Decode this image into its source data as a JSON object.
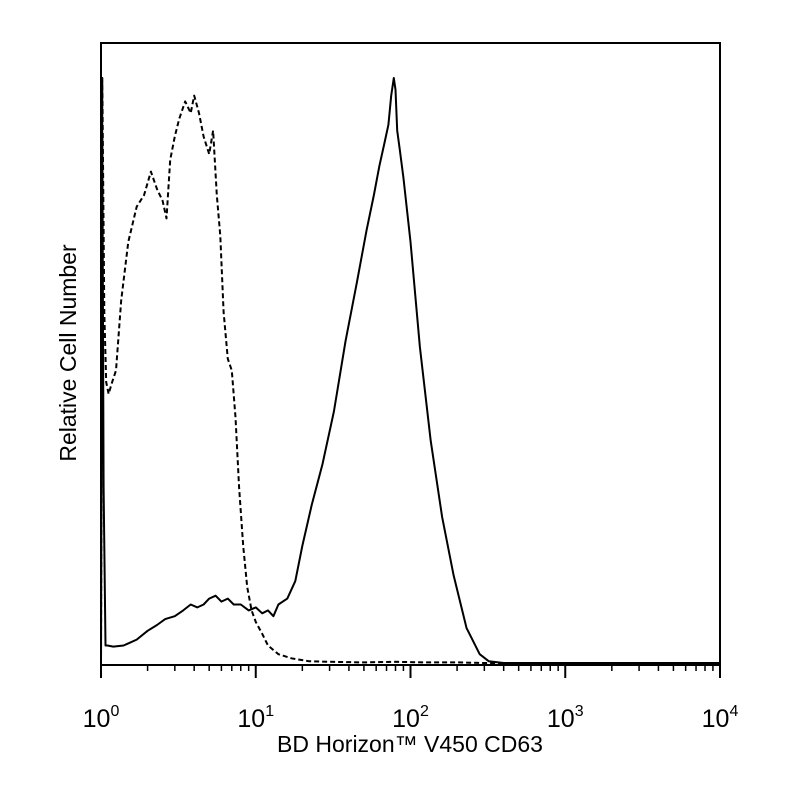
{
  "chart_data": {
    "type": "line",
    "title": "",
    "xlabel": "BD Horizon™ V450 CD63",
    "ylabel": "Relative Cell Number",
    "x_scale": "log",
    "xlim": [
      1,
      10000
    ],
    "ylim": [
      0,
      1
    ],
    "grid": false,
    "legend": "none",
    "x_ticks": [
      {
        "base": "10",
        "exp": "0"
      },
      {
        "base": "10",
        "exp": "1"
      },
      {
        "base": "10",
        "exp": "2"
      },
      {
        "base": "10",
        "exp": "3"
      },
      {
        "base": "10",
        "exp": "4"
      }
    ],
    "series": [
      {
        "style": "dashed",
        "color": "#000000",
        "x": [
          1.0,
          1.02,
          1.05,
          1.08,
          1.12,
          1.18,
          1.25,
          1.35,
          1.5,
          1.7,
          1.9,
          2.1,
          2.3,
          2.5,
          2.65,
          2.8,
          3.0,
          3.2,
          3.5,
          3.8,
          4.0,
          4.3,
          4.6,
          5.0,
          5.3,
          5.6,
          5.9,
          6.2,
          6.6,
          7.0,
          7.4,
          7.8,
          8.3,
          8.8,
          9.4,
          10.0,
          11.0,
          12.0,
          14.0,
          17.0,
          22.0,
          30.0,
          50.0,
          80.0,
          120.0,
          200.0,
          300.0,
          1000.0,
          10000.0
        ],
        "y": [
          0.0,
          1.0,
          0.6,
          0.48,
          0.46,
          0.48,
          0.5,
          0.62,
          0.72,
          0.78,
          0.8,
          0.84,
          0.81,
          0.79,
          0.76,
          0.86,
          0.9,
          0.93,
          0.96,
          0.94,
          0.97,
          0.94,
          0.9,
          0.87,
          0.91,
          0.8,
          0.73,
          0.6,
          0.52,
          0.5,
          0.42,
          0.3,
          0.2,
          0.13,
          0.09,
          0.07,
          0.05,
          0.03,
          0.015,
          0.008,
          0.003,
          0.002,
          0.001,
          0.002,
          0.001,
          0.001,
          0.0,
          0.0,
          0.0
        ]
      },
      {
        "style": "solid",
        "color": "#000000",
        "x": [
          1.0,
          1.02,
          1.04,
          1.07,
          1.1,
          1.2,
          1.4,
          1.7,
          2.0,
          2.3,
          2.6,
          3.0,
          3.4,
          3.8,
          4.2,
          4.6,
          5.0,
          5.5,
          6.0,
          6.6,
          7.2,
          8.0,
          9.0,
          10.0,
          11.0,
          12.0,
          13.0,
          14.0,
          16.0,
          18.0,
          20.0,
          23.0,
          27.0,
          32.0,
          38.0,
          45.0,
          52.0,
          58.0,
          63.0,
          68.0,
          72.0,
          75.0,
          78.0,
          80.0,
          82.0,
          85.0,
          90.0,
          100.0,
          115.0,
          135.0,
          160.0,
          190.0,
          230.0,
          280.0,
          320.0,
          400.0,
          1000.0,
          10000.0
        ],
        "y": [
          0.0,
          0.9,
          0.3,
          0.03,
          0.03,
          0.028,
          0.03,
          0.04,
          0.055,
          0.065,
          0.075,
          0.08,
          0.09,
          0.1,
          0.095,
          0.1,
          0.11,
          0.115,
          0.105,
          0.11,
          0.1,
          0.1,
          0.09,
          0.095,
          0.085,
          0.09,
          0.08,
          0.1,
          0.11,
          0.14,
          0.2,
          0.27,
          0.34,
          0.43,
          0.55,
          0.65,
          0.74,
          0.8,
          0.85,
          0.89,
          0.92,
          0.97,
          1.0,
          0.98,
          0.91,
          0.88,
          0.83,
          0.72,
          0.54,
          0.38,
          0.25,
          0.15,
          0.06,
          0.015,
          0.003,
          0.0,
          0.0,
          0.0
        ]
      }
    ]
  }
}
